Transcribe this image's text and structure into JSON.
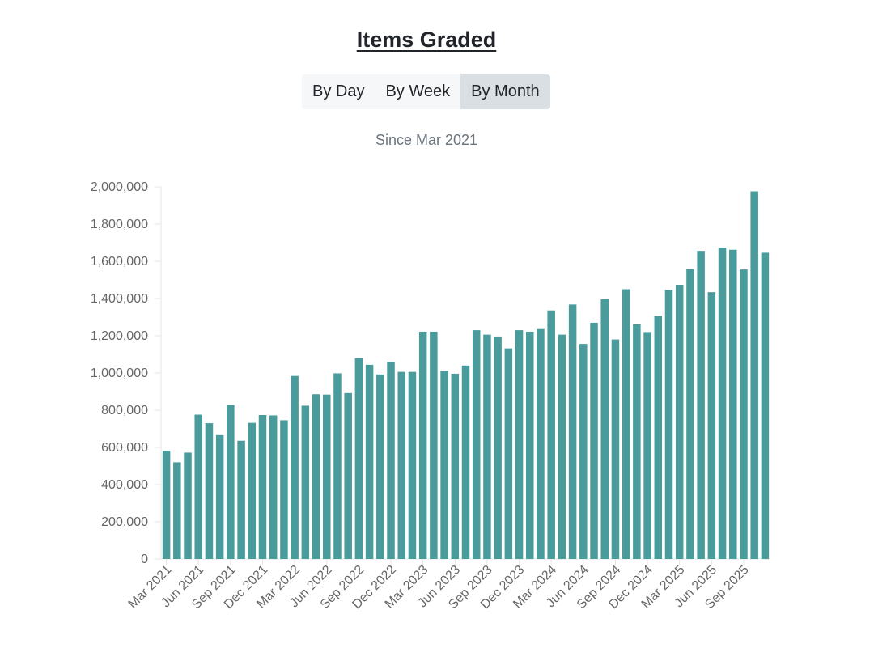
{
  "header": {
    "title": "Items Graded",
    "subtitle": "Since Mar 2021"
  },
  "toggle": {
    "buttons": [
      {
        "label": "By Day",
        "active": false
      },
      {
        "label": "By Week",
        "active": false
      },
      {
        "label": "By Month",
        "active": true
      }
    ]
  },
  "colors": {
    "bar": "#4a9b9b",
    "axis": "#e5e5e5",
    "active_button": "#d9dfe3",
    "button": "#f5f7f8"
  },
  "chart_data": {
    "type": "bar",
    "title": "Items Graded",
    "subtitle": "Since Mar 2021",
    "xlabel": "",
    "ylabel": "",
    "ylim": [
      0,
      2000000
    ],
    "grid": false,
    "yticks": [
      0,
      200000,
      400000,
      600000,
      800000,
      1000000,
      1200000,
      1400000,
      1600000,
      1800000,
      2000000
    ],
    "ytick_labels": [
      "0",
      "200,000",
      "400,000",
      "600,000",
      "800,000",
      "1,000,000",
      "1,200,000",
      "1,400,000",
      "1,600,000",
      "1,800,000",
      "2,000,000"
    ],
    "categories": [
      "Mar 2021",
      "Apr 2021",
      "May 2021",
      "Jun 2021",
      "Jul 2021",
      "Aug 2021",
      "Sep 2021",
      "Oct 2021",
      "Nov 2021",
      "Dec 2021",
      "Jan 2022",
      "Feb 2022",
      "Mar 2022",
      "Apr 2022",
      "May 2022",
      "Jun 2022",
      "Jul 2022",
      "Aug 2022",
      "Sep 2022",
      "Oct 2022",
      "Nov 2022",
      "Dec 2022",
      "Jan 2023",
      "Feb 2023",
      "Mar 2023",
      "Apr 2023",
      "May 2023",
      "Jun 2023",
      "Jul 2023",
      "Aug 2023",
      "Sep 2023",
      "Oct 2023",
      "Nov 2023",
      "Dec 2023",
      "Jan 2024",
      "Feb 2024",
      "Mar 2024",
      "Apr 2024",
      "May 2024",
      "Jun 2024",
      "Jul 2024",
      "Aug 2024",
      "Sep 2024",
      "Oct 2024",
      "Nov 2024",
      "Dec 2024",
      "Jan 2025",
      "Feb 2025",
      "Mar 2025",
      "Apr 2025",
      "May 2025",
      "Jun 2025",
      "Jul 2025",
      "Aug 2025",
      "Sep 2025",
      "Oct 2025",
      "Nov 2025"
    ],
    "xtick_labels": [
      "Mar 2021",
      "Jun 2021",
      "Sep 2021",
      "Dec 2021",
      "Mar 2022",
      "Jun 2022",
      "Sep 2022",
      "Dec 2022",
      "Mar 2023",
      "Jun 2023",
      "Sep 2023",
      "Dec 2023",
      "Mar 2024",
      "Jun 2024",
      "Sep 2024",
      "Dec 2024",
      "Mar 2025",
      "Jun 2025",
      "Sep 2025"
    ],
    "values": [
      582000,
      520000,
      572000,
      776000,
      730000,
      666000,
      828000,
      636000,
      732000,
      774000,
      772000,
      746000,
      984000,
      824000,
      886000,
      884000,
      998000,
      892000,
      1080000,
      1044000,
      992000,
      1060000,
      1006000,
      1006000,
      1222000,
      1222000,
      1010000,
      996000,
      1040000,
      1230000,
      1206000,
      1196000,
      1132000,
      1230000,
      1222000,
      1236000,
      1336000,
      1206000,
      1368000,
      1156000,
      1270000,
      1396000,
      1180000,
      1450000,
      1262000,
      1220000,
      1306000,
      1446000,
      1474000,
      1558000,
      1656000,
      1434000,
      1674000,
      1662000,
      1556000,
      1976000,
      1646000
    ]
  }
}
